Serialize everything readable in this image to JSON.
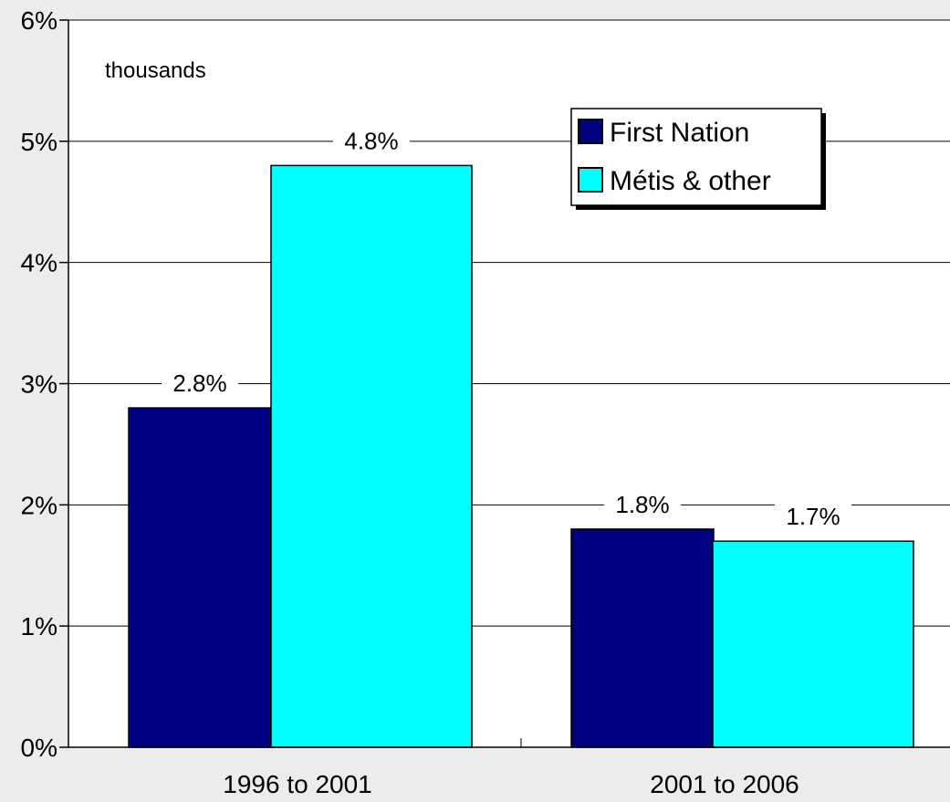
{
  "chart_data": {
    "type": "bar",
    "title": "",
    "annotation": "thousands",
    "xlabel": "",
    "ylabel": "",
    "categories": [
      "1996 to 2001",
      "2001 to 2006"
    ],
    "series": [
      {
        "name": "First Nation",
        "values": [
          2.8,
          1.8
        ],
        "labels": [
          "2.8%",
          "1.8%"
        ],
        "color": "#000080"
      },
      {
        "name": "Métis & other",
        "values": [
          4.8,
          1.7
        ],
        "labels": [
          "4.8%",
          "1.7%"
        ],
        "color": "#00ffff"
      }
    ],
    "ylim": [
      0,
      6
    ],
    "yticks": [
      0,
      1,
      2,
      3,
      4,
      5,
      6
    ],
    "ytick_labels": [
      "0%",
      "1%",
      "2%",
      "3%",
      "4%",
      "5%",
      "6%"
    ],
    "grid": true,
    "legend_position": "top-right",
    "background_color": "#ececec",
    "plot_background_color": "#ffffff"
  }
}
